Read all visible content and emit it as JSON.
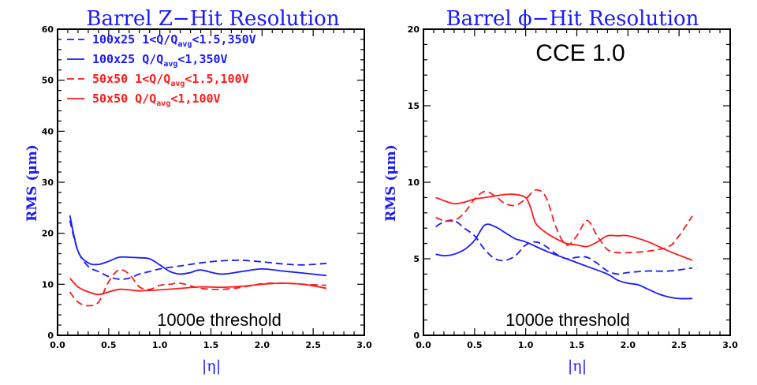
{
  "chart_data": [
    {
      "type": "line",
      "title": "Barrel Z−Hit Resolution",
      "xlabel": "|η|",
      "ylabel": "RMS (μm)",
      "xlim": [
        0.0,
        3.0
      ],
      "ylim": [
        0,
        60
      ],
      "xticks": [
        "0.0",
        "0.5",
        "1.0",
        "1.5",
        "2.0",
        "2.5",
        "3.0"
      ],
      "yticks": [
        "0",
        "10",
        "20",
        "30",
        "40",
        "50",
        "60"
      ],
      "annotation": "1000e threshold",
      "legend": [
        {
          "pre": "100x25 1<Q/Q",
          "sub": "avg",
          "post": "<1.5,350V",
          "color": "#1a1aff",
          "dash": true
        },
        {
          "pre": "100x25 Q/Q",
          "sub": "avg",
          "post": "<1,350V",
          "color": "#1a1aff",
          "dash": false
        },
        {
          "pre": "50x50 1<Q/Q",
          "sub": "avg",
          "post": "<1.5,100V",
          "color": "#ff1a1a",
          "dash": true
        },
        {
          "pre": "50x50 Q/Q",
          "sub": "avg",
          "post": "<1,100V",
          "color": "#ff1a1a",
          "dash": false
        }
      ],
      "series": [
        {
          "name": "100x25 1<Q/Qavg<1.5,350V",
          "color": "#1a1aff",
          "dash": true,
          "x": [
            0.12,
            0.2,
            0.3,
            0.4,
            0.5,
            0.6,
            0.7,
            0.8,
            0.9,
            1.0,
            1.2,
            1.4,
            1.6,
            1.8,
            2.0,
            2.2,
            2.4,
            2.63
          ],
          "y": [
            22.5,
            16.5,
            13.5,
            12.5,
            11.5,
            11.0,
            11.2,
            12.0,
            12.5,
            13.0,
            13.6,
            14.2,
            14.6,
            14.7,
            14.4,
            14.0,
            13.8,
            14.1
          ]
        },
        {
          "name": "100x25 Q/Qavg<1,350V",
          "color": "#1a1aff",
          "dash": false,
          "x": [
            0.12,
            0.2,
            0.3,
            0.4,
            0.5,
            0.6,
            0.7,
            0.8,
            0.9,
            1.0,
            1.1,
            1.2,
            1.3,
            1.4,
            1.6,
            1.8,
            2.0,
            2.2,
            2.4,
            2.63
          ],
          "y": [
            23.5,
            16.5,
            14.2,
            13.9,
            14.5,
            15.3,
            15.3,
            15.2,
            15.0,
            13.8,
            12.5,
            12.0,
            12.3,
            12.8,
            12.0,
            12.5,
            13.0,
            12.6,
            12.2,
            11.7
          ]
        },
        {
          "name": "50x50 1<Q/Qavg<1.5,100V",
          "color": "#ff1a1a",
          "dash": true,
          "x": [
            0.12,
            0.2,
            0.3,
            0.4,
            0.5,
            0.6,
            0.7,
            0.8,
            0.9,
            1.0,
            1.1,
            1.2,
            1.4,
            1.6,
            1.8,
            2.0,
            2.2,
            2.4,
            2.63
          ],
          "y": [
            8.5,
            6.5,
            5.8,
            6.5,
            10.5,
            12.8,
            12.0,
            9.5,
            9.0,
            9.8,
            10.0,
            10.2,
            9.2,
            9.0,
            9.4,
            10.1,
            10.2,
            10.0,
            9.8
          ]
        },
        {
          "name": "50x50 Q/Qavg<1,100V",
          "color": "#ff1a1a",
          "dash": false,
          "x": [
            0.12,
            0.2,
            0.3,
            0.4,
            0.5,
            0.6,
            0.7,
            0.8,
            0.9,
            1.0,
            1.2,
            1.4,
            1.6,
            1.8,
            2.0,
            2.2,
            2.4,
            2.63
          ],
          "y": [
            11.2,
            9.5,
            8.5,
            8.0,
            8.5,
            9.0,
            8.9,
            8.7,
            8.8,
            8.9,
            9.2,
            9.5,
            9.4,
            9.6,
            10.0,
            10.2,
            10.0,
            9.2
          ]
        }
      ]
    },
    {
      "type": "line",
      "title": "Barrel ϕ−Hit Resolution",
      "xlabel": "|η|",
      "ylabel": "RMS (μm)",
      "xlim": [
        0.0,
        3.0
      ],
      "ylim": [
        0,
        20
      ],
      "xticks": [
        "0.0",
        "0.5",
        "1.0",
        "1.5",
        "2.0",
        "2.5",
        "3.0"
      ],
      "yticks": [
        "0",
        "5",
        "10",
        "15",
        "20"
      ],
      "annotation": "1000e threshold",
      "label": "CCE 1.0",
      "series": [
        {
          "name": "100x25 1<Q/Qavg<1.5,350V",
          "color": "#1a1aff",
          "dash": true,
          "x": [
            0.12,
            0.2,
            0.3,
            0.4,
            0.5,
            0.6,
            0.7,
            0.8,
            0.9,
            1.0,
            1.1,
            1.2,
            1.3,
            1.4,
            1.5,
            1.6,
            1.7,
            1.8,
            1.9,
            2.0,
            2.2,
            2.4,
            2.63
          ],
          "y": [
            7.1,
            7.4,
            7.5,
            7.0,
            6.5,
            5.6,
            5.0,
            4.9,
            5.2,
            5.9,
            6.1,
            5.8,
            5.3,
            5.0,
            5.1,
            5.1,
            4.7,
            4.2,
            4.0,
            4.1,
            4.2,
            4.2,
            4.4
          ]
        },
        {
          "name": "100x25 Q/Qavg<1,350V",
          "color": "#1a1aff",
          "dash": false,
          "x": [
            0.12,
            0.2,
            0.3,
            0.4,
            0.5,
            0.6,
            0.7,
            0.8,
            0.9,
            1.0,
            1.2,
            1.4,
            1.6,
            1.8,
            1.9,
            2.0,
            2.1,
            2.2,
            2.3,
            2.4,
            2.5,
            2.63
          ],
          "y": [
            5.3,
            5.2,
            5.3,
            5.6,
            6.2,
            7.2,
            7.1,
            6.7,
            6.3,
            6.1,
            5.5,
            5.0,
            4.5,
            4.0,
            3.6,
            3.4,
            3.3,
            3.0,
            2.7,
            2.5,
            2.4,
            2.4
          ]
        },
        {
          "name": "50x50 1<Q/Qavg<1.5,100V",
          "color": "#ff1a1a",
          "dash": true,
          "x": [
            0.12,
            0.2,
            0.3,
            0.4,
            0.5,
            0.6,
            0.7,
            0.8,
            0.9,
            1.0,
            1.1,
            1.2,
            1.3,
            1.4,
            1.5,
            1.6,
            1.7,
            1.8,
            1.9,
            2.0,
            2.2,
            2.4,
            2.5,
            2.63
          ],
          "y": [
            7.7,
            7.5,
            7.5,
            8.0,
            8.9,
            9.4,
            9.1,
            8.6,
            8.5,
            8.9,
            9.5,
            9.0,
            7.0,
            5.9,
            6.5,
            7.5,
            6.5,
            5.6,
            5.4,
            5.4,
            5.5,
            5.8,
            6.5,
            7.8
          ]
        },
        {
          "name": "50x50 Q/Qavg<1,100V",
          "color": "#ff1a1a",
          "dash": false,
          "x": [
            0.12,
            0.2,
            0.3,
            0.4,
            0.5,
            0.6,
            0.7,
            0.8,
            0.9,
            1.0,
            1.05,
            1.1,
            1.2,
            1.3,
            1.4,
            1.5,
            1.6,
            1.7,
            1.8,
            1.9,
            2.0,
            2.2,
            2.4,
            2.63
          ],
          "y": [
            9.0,
            8.8,
            8.6,
            8.7,
            8.9,
            9.0,
            9.1,
            9.2,
            9.2,
            9.0,
            8.3,
            7.3,
            6.7,
            6.3,
            6.0,
            5.9,
            5.8,
            6.1,
            6.5,
            6.5,
            6.5,
            6.1,
            5.5,
            4.9
          ]
        }
      ]
    }
  ]
}
